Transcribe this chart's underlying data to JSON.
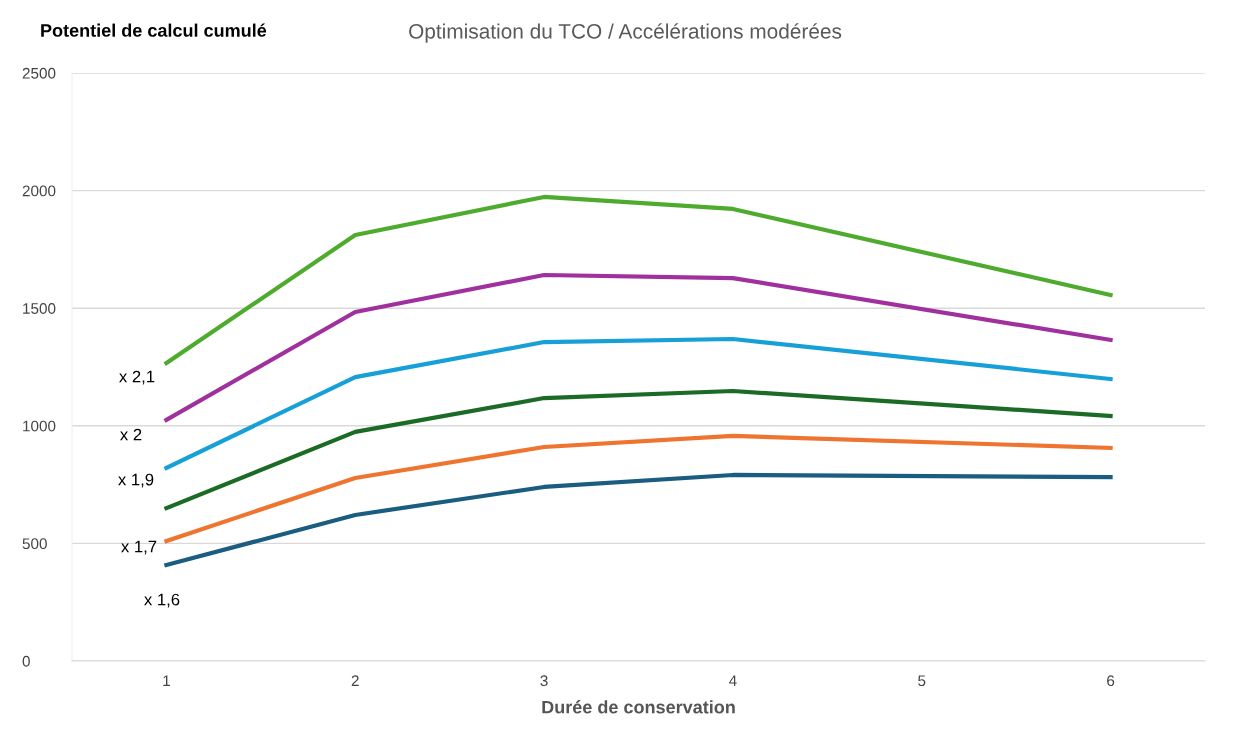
{
  "chart_data": {
    "type": "line",
    "title": "Optimisation du TCO / Accélérations modérées",
    "ylabel": "Potentiel de calcul cumulé",
    "xlabel": "Durée de conservation",
    "x": [
      1,
      2,
      3,
      4,
      6
    ],
    "series": [
      {
        "color": "#4eab2e",
        "values": [
          1267,
          1811,
          1973,
          1922,
          1556
        ]
      },
      {
        "color": "#a0309e",
        "values": [
          1025,
          1484,
          1641,
          1628,
          1365
        ]
      },
      {
        "color": "#17a0d8",
        "values": [
          821,
          1207,
          1356,
          1369,
          1199
        ]
      },
      {
        "color": "#1b6b26",
        "values": [
          650,
          974,
          1118,
          1148,
          1042
        ]
      },
      {
        "color": "#ef7430",
        "values": [
          510,
          778,
          910,
          957,
          906
        ]
      },
      {
        "color": "#1a5d80",
        "values": [
          408,
          621,
          740,
          791,
          782
        ]
      }
    ],
    "annotations": [
      "x 2,1",
      "x 2",
      "x 1,9",
      "x 1,7",
      "x 1,6"
    ],
    "xlim": [
      0.5,
      6.5
    ],
    "xticks": [
      1,
      2,
      3,
      4,
      5,
      6
    ],
    "ylim": [
      0,
      2500
    ],
    "yticks": [
      0,
      500,
      1000,
      1500,
      2000,
      2500
    ],
    "grid": "y",
    "legend": false,
    "marker": "none",
    "line_style": "solid"
  }
}
